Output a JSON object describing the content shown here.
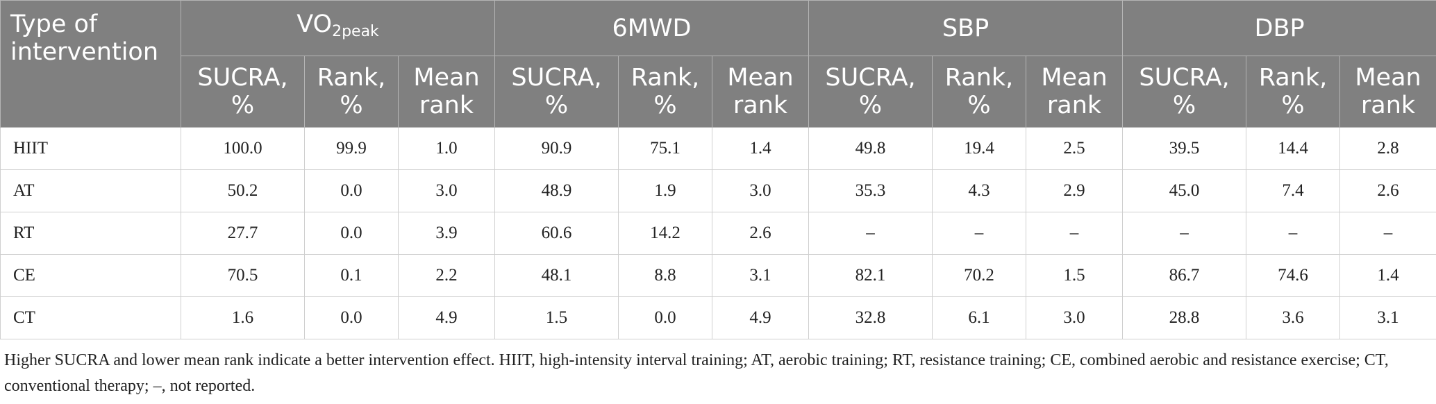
{
  "table": {
    "corner": "Type of intervention",
    "groups": [
      {
        "main": "VO",
        "sub": "2peak",
        "columns": [
          "SUCRA, %",
          "Rank, %",
          "Mean rank"
        ]
      },
      {
        "main": "6MWD",
        "columns": [
          "SUCRA, %",
          "Rank, %",
          "Mean rank"
        ]
      },
      {
        "main": "SBP",
        "columns": [
          "SUCRA, %",
          "Rank, %",
          "Mean rank"
        ]
      },
      {
        "main": "DBP",
        "columns": [
          "SUCRA, %",
          "Rank, %",
          "Mean rank"
        ]
      }
    ],
    "rows": [
      [
        "HIIT",
        "100.0",
        "99.9",
        "1.0",
        "90.9",
        "75.1",
        "1.4",
        "49.8",
        "19.4",
        "2.5",
        "39.5",
        "14.4",
        "2.8"
      ],
      [
        "AT",
        "50.2",
        "0.0",
        "3.0",
        "48.9",
        "1.9",
        "3.0",
        "35.3",
        "4.3",
        "2.9",
        "45.0",
        "7.4",
        "2.6"
      ],
      [
        "RT",
        "27.7",
        "0.0",
        "3.9",
        "60.6",
        "14.2",
        "2.6",
        "–",
        "–",
        "–",
        "–",
        "–",
        "–"
      ],
      [
        "CE",
        "70.5",
        "0.1",
        "2.2",
        "48.1",
        "8.8",
        "3.1",
        "82.1",
        "70.2",
        "1.5",
        "86.7",
        "74.6",
        "1.4"
      ],
      [
        "CT",
        "1.6",
        "0.0",
        "4.9",
        "1.5",
        "0.0",
        "4.9",
        "32.8",
        "6.1",
        "3.0",
        "28.8",
        "3.6",
        "3.1"
      ]
    ],
    "footnote": "Higher SUCRA and lower mean rank indicate a better intervention effect. HIIT, high-intensity interval training; AT, aerobic training; RT, resistance training; CE, combined aerobic and resistance exercise; CT, conventional therapy; –, not reported."
  }
}
